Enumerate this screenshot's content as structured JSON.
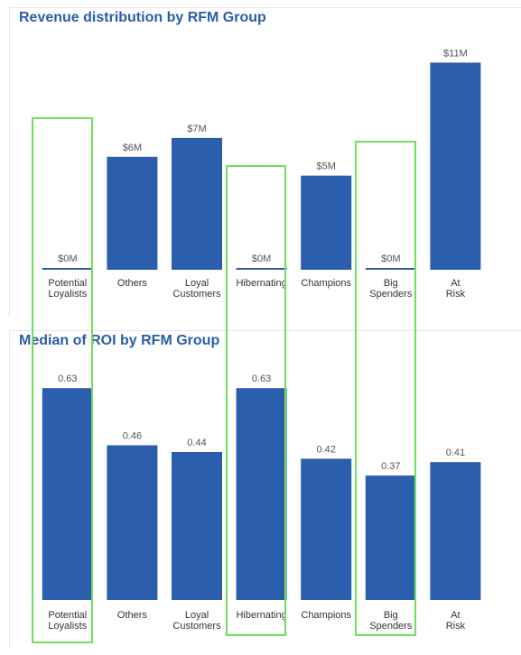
{
  "charts": [
    {
      "id": "revenue",
      "title": "Revenue distribution by RFM Group",
      "chart_data": {
        "type": "bar",
        "categories": [
          "Potential Loyalists",
          "Others",
          "Loyal Customers",
          "Hibernating",
          "Champions",
          "Big Spenders",
          "At Risk"
        ],
        "values": [
          0,
          6,
          7,
          0,
          5,
          0,
          11
        ],
        "value_unit": "millions of dollars",
        "data_labels": [
          "$0M",
          "$6M",
          "$7M",
          "$0M",
          "$5M",
          "$0M",
          "$11M"
        ],
        "title": "Revenue distribution by RFM Group",
        "xlabel": "",
        "ylabel": "",
        "ylim": [
          0,
          11.5
        ],
        "grid": false,
        "bar_color": "#2b5ead"
      }
    },
    {
      "id": "roi",
      "title": "Median of ROI by RFM Group",
      "chart_data": {
        "type": "bar",
        "categories": [
          "Potential Loyalists",
          "Others",
          "Loyal Customers",
          "Hibernating",
          "Champions",
          "Big Spenders",
          "At Risk"
        ],
        "values": [
          0.63,
          0.46,
          0.44,
          0.63,
          0.42,
          0.37,
          0.41
        ],
        "data_labels": [
          "0.63",
          "0.46",
          "0.44",
          "0.63",
          "0.42",
          "0.37",
          "0.41"
        ],
        "title": "Median of ROI by RFM Group",
        "xlabel": "",
        "ylabel": "",
        "ylim": [
          0,
          0.66
        ],
        "grid": false,
        "bar_color": "#2b5ead"
      }
    }
  ],
  "highlight_color": "#6fe05a",
  "highlighted_categories": [
    "Potential Loyalists",
    "Hibernating",
    "Big Spenders"
  ]
}
